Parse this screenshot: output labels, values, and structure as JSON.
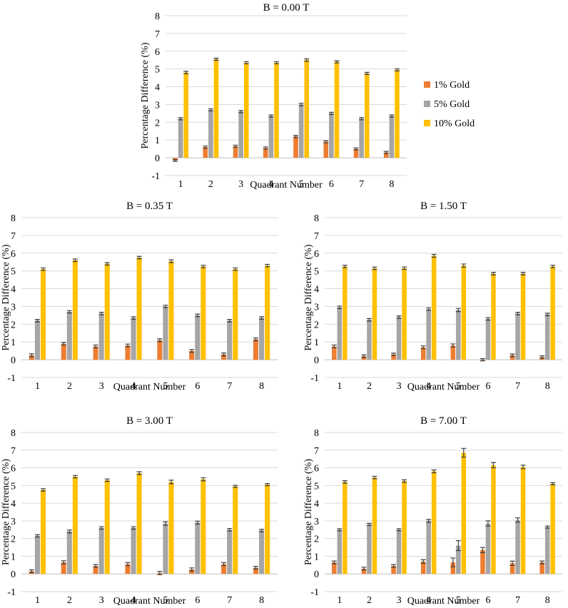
{
  "colors": {
    "gold1": "#ED7D31",
    "gold5": "#A5A5A5",
    "gold10": "#FFC000"
  },
  "chart_data": [
    {
      "type": "bar",
      "title": "B = 0.00 T",
      "xlabel": "Quadrant Number",
      "ylabel": "Percentage Difference (%)",
      "ylim": [
        -1,
        8
      ],
      "yticks": [
        "-1",
        "0",
        "1",
        "2",
        "3",
        "4",
        "5",
        "6",
        "7",
        "8"
      ],
      "categories": [
        "1",
        "2",
        "3",
        "4",
        "5",
        "6",
        "7",
        "8"
      ],
      "legend": "right",
      "series": [
        {
          "name": "1% Gold",
          "values": [
            -0.15,
            0.6,
            0.65,
            0.55,
            1.2,
            0.9,
            0.5,
            0.3
          ],
          "errors": [
            0.05,
            0.06,
            0.06,
            0.06,
            0.06,
            0.06,
            0.06,
            0.06
          ]
        },
        {
          "name": "5% Gold",
          "values": [
            2.2,
            2.7,
            2.6,
            2.35,
            3.0,
            2.5,
            2.2,
            2.35
          ],
          "errors": [
            0.06,
            0.06,
            0.06,
            0.06,
            0.07,
            0.06,
            0.06,
            0.06
          ]
        },
        {
          "name": "10% Gold",
          "values": [
            4.8,
            5.55,
            5.35,
            5.35,
            5.5,
            5.4,
            4.75,
            4.95
          ],
          "errors": [
            0.07,
            0.06,
            0.06,
            0.06,
            0.07,
            0.06,
            0.06,
            0.06
          ]
        }
      ]
    },
    {
      "type": "bar",
      "title": "B = 0.35 T",
      "xlabel": "Quadrant Number",
      "ylabel": "Percentage Difference (%)",
      "ylim": [
        -1,
        8
      ],
      "yticks": [
        "-1",
        "0",
        "1",
        "2",
        "3",
        "4",
        "5",
        "6",
        "7",
        "8"
      ],
      "categories": [
        "1",
        "2",
        "3",
        "4",
        "5",
        "6",
        "7",
        "8"
      ],
      "series": [
        {
          "name": "1% Gold",
          "values": [
            0.25,
            0.9,
            0.75,
            0.8,
            1.1,
            0.5,
            0.3,
            1.15
          ],
          "errors": [
            0.08,
            0.08,
            0.08,
            0.08,
            0.08,
            0.08,
            0.08,
            0.08
          ]
        },
        {
          "name": "5% Gold",
          "values": [
            2.2,
            2.7,
            2.6,
            2.35,
            3.0,
            2.5,
            2.2,
            2.35
          ],
          "errors": [
            0.07,
            0.07,
            0.07,
            0.07,
            0.07,
            0.07,
            0.07,
            0.07
          ]
        },
        {
          "name": "10% Gold",
          "values": [
            5.1,
            5.6,
            5.4,
            5.75,
            5.55,
            5.25,
            5.1,
            5.3
          ],
          "errors": [
            0.07,
            0.07,
            0.07,
            0.07,
            0.08,
            0.07,
            0.07,
            0.07
          ]
        }
      ]
    },
    {
      "type": "bar",
      "title": "B = 1.50 T",
      "xlabel": "Quadrant Number",
      "ylabel": "Percentage Difference (%)",
      "ylim": [
        -1,
        8
      ],
      "yticks": [
        "-1",
        "0",
        "1",
        "2",
        "3",
        "4",
        "5",
        "6",
        "7",
        "8"
      ],
      "categories": [
        "1",
        "2",
        "3",
        "4",
        "5",
        "6",
        "7",
        "8"
      ],
      "series": [
        {
          "name": "1% Gold",
          "values": [
            0.75,
            0.2,
            0.3,
            0.7,
            0.8,
            0.0,
            0.25,
            0.15
          ],
          "errors": [
            0.08,
            0.07,
            0.07,
            0.08,
            0.09,
            0.06,
            0.07,
            0.07
          ]
        },
        {
          "name": "5% Gold",
          "values": [
            2.95,
            2.25,
            2.4,
            2.85,
            2.8,
            2.3,
            2.6,
            2.55
          ],
          "errors": [
            0.07,
            0.07,
            0.07,
            0.07,
            0.09,
            0.07,
            0.07,
            0.07
          ]
        },
        {
          "name": "10% Gold",
          "values": [
            5.25,
            5.15,
            5.15,
            5.85,
            5.3,
            4.85,
            4.85,
            5.25
          ],
          "errors": [
            0.07,
            0.07,
            0.07,
            0.08,
            0.09,
            0.07,
            0.07,
            0.07
          ]
        }
      ]
    },
    {
      "type": "bar",
      "title": "B = 3.00 T",
      "xlabel": "Quadrant Number",
      "ylabel": "Percentage Difference (%)",
      "ylim": [
        -1,
        8
      ],
      "yticks": [
        "-1",
        "0",
        "1",
        "2",
        "3",
        "4",
        "5",
        "6",
        "7",
        "8"
      ],
      "categories": [
        "1",
        "2",
        "3",
        "4",
        "5",
        "6",
        "7",
        "8"
      ],
      "series": [
        {
          "name": "1% Gold",
          "values": [
            0.15,
            0.65,
            0.45,
            0.55,
            0.05,
            0.25,
            0.55,
            0.35
          ],
          "errors": [
            0.08,
            0.09,
            0.08,
            0.09,
            0.09,
            0.09,
            0.09,
            0.08
          ]
        },
        {
          "name": "5% Gold",
          "values": [
            2.15,
            2.4,
            2.6,
            2.6,
            2.85,
            2.9,
            2.5,
            2.45
          ],
          "errors": [
            0.07,
            0.08,
            0.07,
            0.07,
            0.1,
            0.08,
            0.07,
            0.07
          ]
        },
        {
          "name": "10% Gold",
          "values": [
            4.75,
            5.5,
            5.3,
            5.7,
            5.2,
            5.35,
            4.95,
            5.05
          ],
          "errors": [
            0.07,
            0.07,
            0.07,
            0.08,
            0.1,
            0.09,
            0.06,
            0.06
          ]
        }
      ]
    },
    {
      "type": "bar",
      "title": "B = 7.00 T",
      "xlabel": "Quadrant Number",
      "ylabel": "Percentage Difference (%)",
      "ylim": [
        -1,
        8
      ],
      "yticks": [
        "-1",
        "0",
        "1",
        "2",
        "3",
        "4",
        "5",
        "6",
        "7",
        "8"
      ],
      "categories": [
        "1",
        "2",
        "3",
        "4",
        "5",
        "6",
        "7",
        "8"
      ],
      "series": [
        {
          "name": "1% Gold",
          "values": [
            0.65,
            0.3,
            0.45,
            0.7,
            0.65,
            1.35,
            0.6,
            0.65
          ],
          "errors": [
            0.08,
            0.08,
            0.08,
            0.1,
            0.25,
            0.15,
            0.12,
            0.08
          ]
        },
        {
          "name": "5% Gold",
          "values": [
            2.5,
            2.8,
            2.5,
            3.0,
            1.6,
            2.85,
            3.05,
            2.65
          ],
          "errors": [
            0.06,
            0.06,
            0.06,
            0.08,
            0.28,
            0.15,
            0.12,
            0.06
          ]
        },
        {
          "name": "10% Gold",
          "values": [
            5.2,
            5.45,
            5.25,
            5.8,
            6.85,
            6.15,
            6.05,
            5.1
          ],
          "errors": [
            0.07,
            0.07,
            0.07,
            0.08,
            0.25,
            0.15,
            0.1,
            0.06
          ]
        }
      ]
    }
  ]
}
